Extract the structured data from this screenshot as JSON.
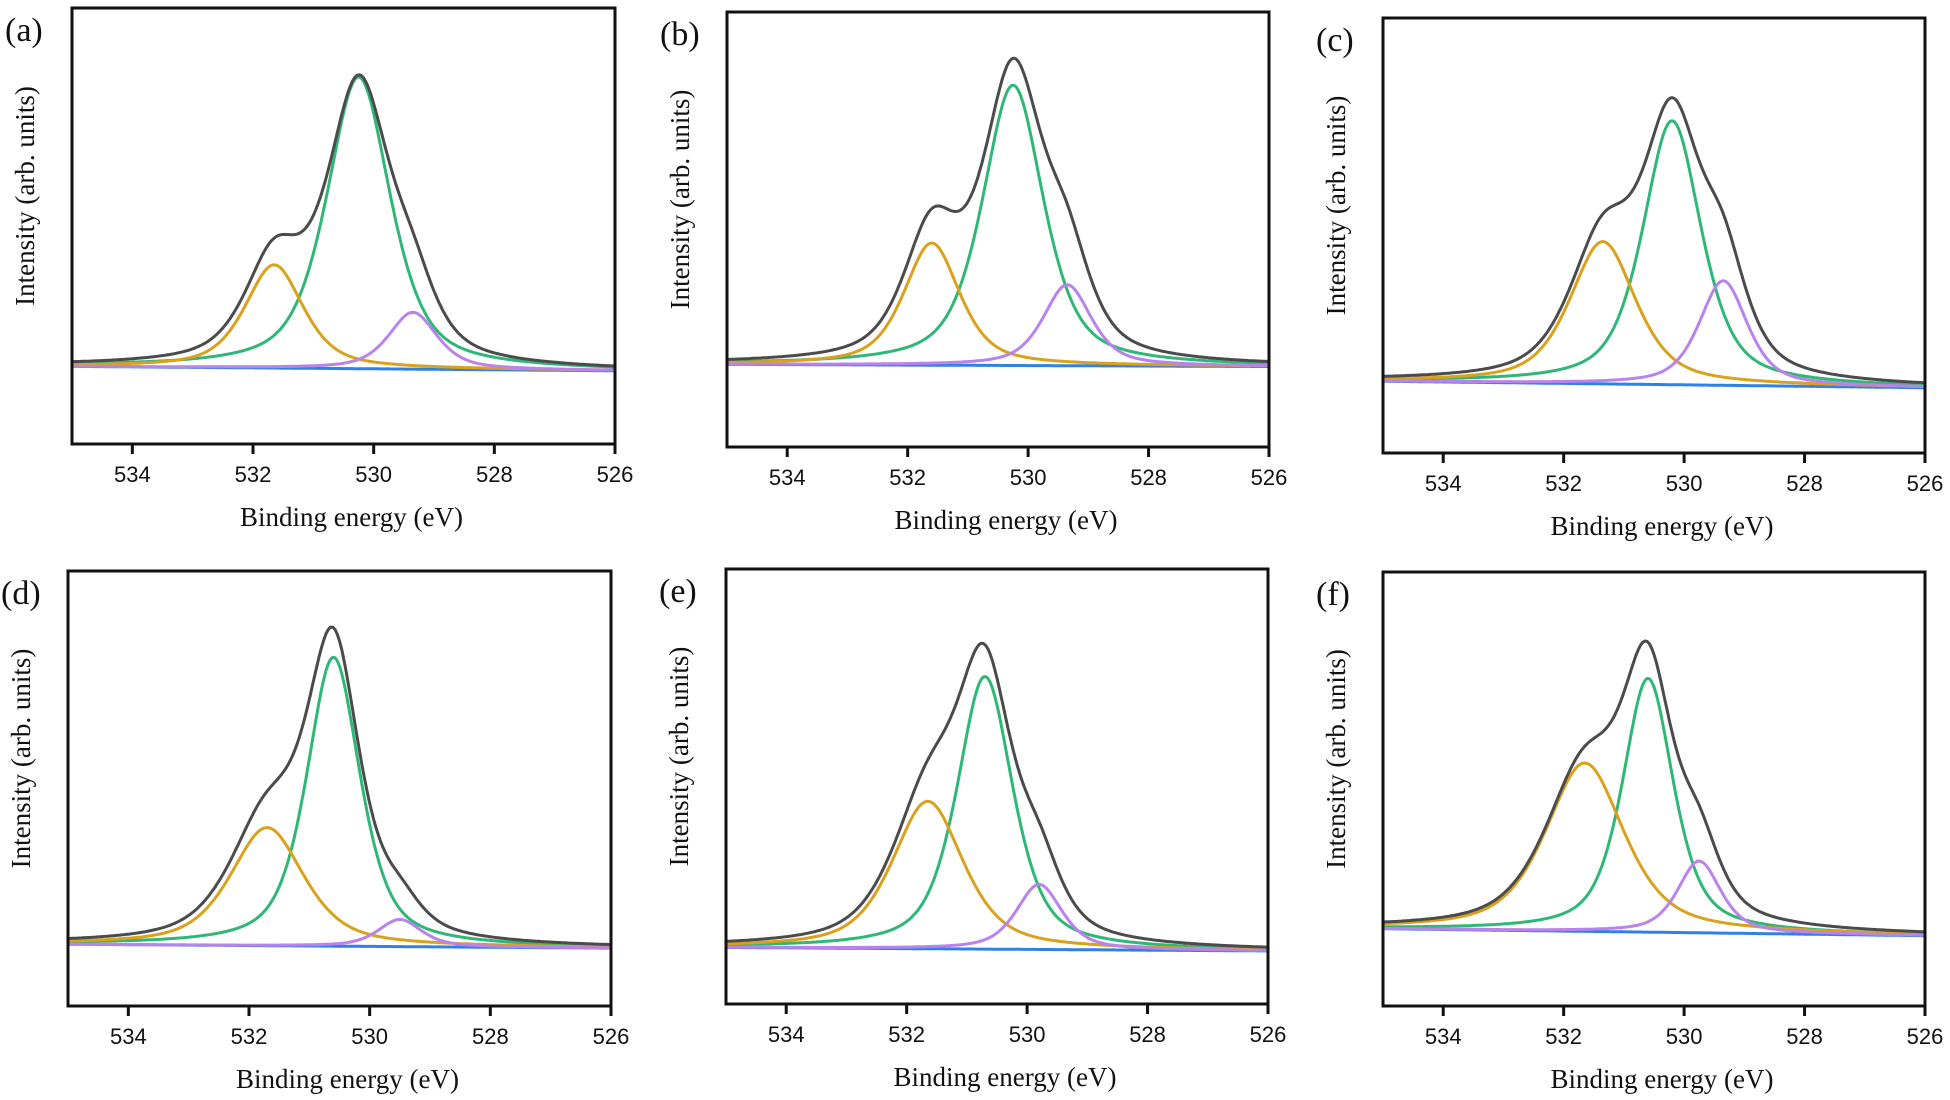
{
  "figure": {
    "description": "O 1s XPS spectra with peak deconvolution, six samples"
  },
  "colors": {
    "envelope": "#4b4b4b",
    "O_lattice": "#2fb777",
    "O_vacancy": "#d9a11c",
    "O_low": "#b983ec",
    "background": "#2f80e8"
  },
  "chart_data": [
    {
      "panel": "(a)",
      "type": "line",
      "xlabel": "Binding energy (eV)",
      "ylabel": "Intensity (arb. units)",
      "xlim": [
        535,
        526
      ],
      "ylim": [
        0,
        1
      ],
      "xticks": [
        534,
        532,
        530,
        528,
        526
      ],
      "yticks": [],
      "baseline": {
        "start": 0.178,
        "end": 0.168
      },
      "peaks": [
        {
          "name": "green",
          "center": 530.25,
          "height": 0.842,
          "fwhm": 1.25
        },
        {
          "name": "orange",
          "center": 531.65,
          "height": 0.411,
          "fwhm": 1.15
        },
        {
          "name": "purple",
          "center": 529.35,
          "height": 0.302,
          "fwhm": 0.95
        }
      ],
      "envelope_peak": {
        "x": 530.35,
        "y": 0.847
      }
    },
    {
      "panel": "(b)",
      "type": "line",
      "xlabel": "Binding energy (eV)",
      "ylabel": "Intensity (arb. units)",
      "xlim": [
        535,
        526
      ],
      "ylim": [
        0,
        1
      ],
      "xticks": [
        534,
        532,
        530,
        528,
        526
      ],
      "yticks": [],
      "baseline": {
        "start": 0.19,
        "end": 0.185
      },
      "peaks": [
        {
          "name": "green",
          "center": 530.25,
          "height": 0.832,
          "fwhm": 1.2
        },
        {
          "name": "orange",
          "center": 531.6,
          "height": 0.469,
          "fwhm": 1.1
        },
        {
          "name": "purple",
          "center": 529.35,
          "height": 0.373,
          "fwhm": 0.95
        }
      ],
      "envelope_peak": {
        "x": 530.35,
        "y": 0.894
      }
    },
    {
      "panel": "(c)",
      "type": "line",
      "xlabel": "Binding energy (eV)",
      "ylabel": "Intensity (arb. units)",
      "xlim": [
        535,
        526
      ],
      "ylim": [
        0,
        1
      ],
      "xticks": [
        534,
        532,
        530,
        528,
        526
      ],
      "yticks": [],
      "baseline": {
        "start": 0.165,
        "end": 0.15
      },
      "peaks": [
        {
          "name": "green",
          "center": 530.2,
          "height": 0.764,
          "fwhm": 1.15
        },
        {
          "name": "orange",
          "center": 531.35,
          "height": 0.486,
          "fwhm": 1.3
        },
        {
          "name": "purple",
          "center": 529.35,
          "height": 0.396,
          "fwhm": 0.95
        }
      ],
      "envelope_peak": {
        "x": 530.2,
        "y": 0.817
      }
    },
    {
      "panel": "(d)",
      "type": "line",
      "xlabel": "Binding energy (eV)",
      "ylabel": "Intensity (arb. units)",
      "xlim": [
        535,
        526
      ],
      "ylim": [
        0,
        1
      ],
      "xticks": [
        534,
        532,
        530,
        528,
        526
      ],
      "yticks": [],
      "baseline": {
        "start": 0.142,
        "end": 0.133
      },
      "peaks": [
        {
          "name": "green",
          "center": 530.6,
          "height": 0.802,
          "fwhm": 1.05
        },
        {
          "name": "orange",
          "center": 531.7,
          "height": 0.41,
          "fwhm": 1.45
        },
        {
          "name": "purple",
          "center": 529.5,
          "height": 0.199,
          "fwhm": 0.85
        }
      ],
      "envelope_peak": {
        "x": 530.6,
        "y": 0.871
      }
    },
    {
      "panel": "(e)",
      "type": "line",
      "xlabel": "Binding energy (eV)",
      "ylabel": "Intensity (arb. units)",
      "xlim": [
        535,
        526
      ],
      "ylim": [
        0,
        1
      ],
      "xticks": [
        534,
        532,
        530,
        528,
        526
      ],
      "yticks": [],
      "baseline": {
        "start": 0.13,
        "end": 0.122
      },
      "peaks": [
        {
          "name": "green",
          "center": 530.7,
          "height": 0.753,
          "fwhm": 1.1
        },
        {
          "name": "orange",
          "center": 531.65,
          "height": 0.466,
          "fwhm": 1.4
        },
        {
          "name": "purple",
          "center": 529.8,
          "height": 0.275,
          "fwhm": 0.9
        }
      ],
      "envelope_peak": {
        "x": 530.65,
        "y": 0.829
      }
    },
    {
      "panel": "(f)",
      "type": "line",
      "xlabel": "Binding energy (eV)",
      "ylabel": "Intensity (arb. units)",
      "xlim": [
        535,
        526
      ],
      "ylim": [
        0,
        1
      ],
      "xticks": [
        534,
        532,
        530,
        528,
        526
      ],
      "yticks": [],
      "baseline": {
        "start": 0.178,
        "end": 0.162
      },
      "peaks": [
        {
          "name": "green",
          "center": 530.6,
          "height": 0.755,
          "fwhm": 1.0
        },
        {
          "name": "orange",
          "center": 531.65,
          "height": 0.56,
          "fwhm": 1.55
        },
        {
          "name": "purple",
          "center": 529.75,
          "height": 0.334,
          "fwhm": 0.85
        }
      ],
      "envelope_peak": {
        "x": 530.6,
        "y": 0.841
      }
    }
  ]
}
